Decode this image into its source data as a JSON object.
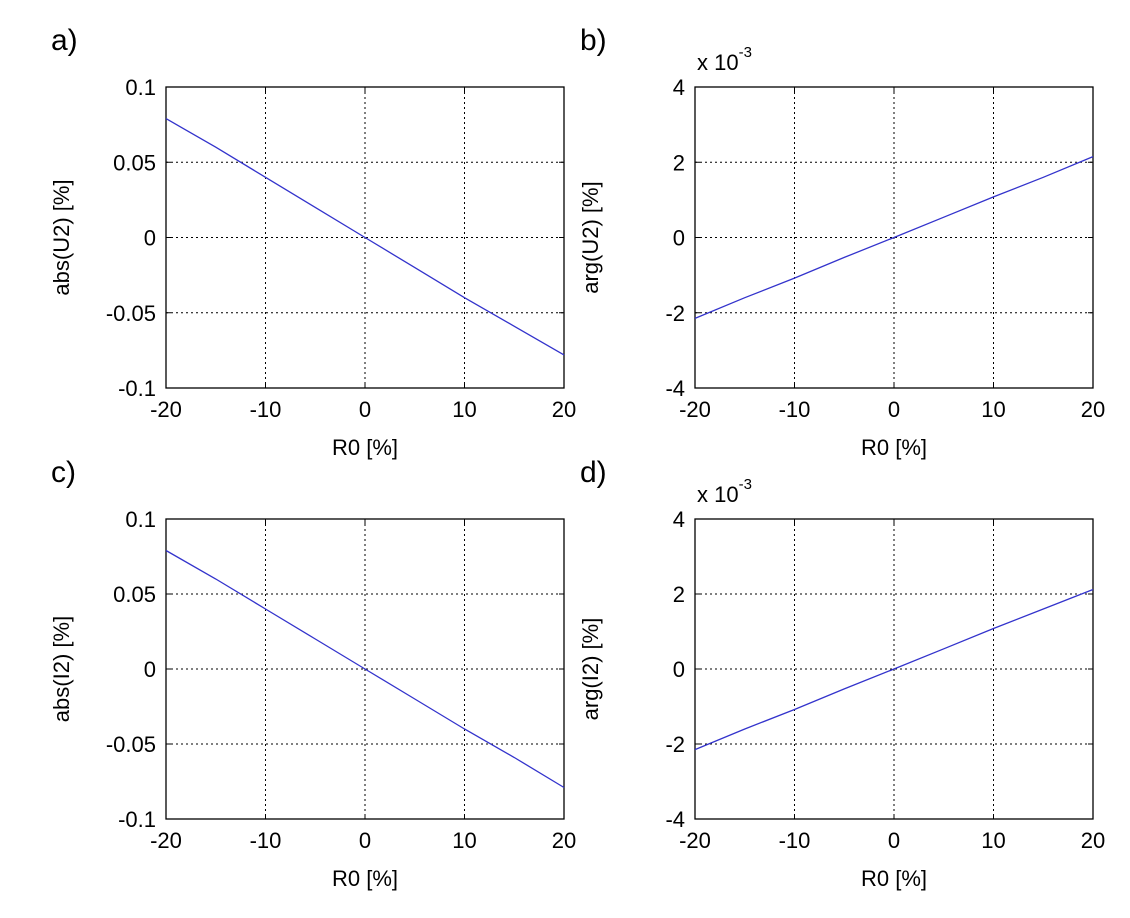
{
  "chart_data": [
    {
      "type": "line",
      "panel_label": "a)",
      "xlabel": "R0 [%]",
      "ylabel": "abs(U2) [%]",
      "xlim": [
        -20,
        20
      ],
      "ylim": [
        -0.1,
        0.1
      ],
      "xticks": [
        -20,
        -10,
        0,
        10,
        20
      ],
      "xtick_labels": [
        "-20",
        "-10",
        "0",
        "10",
        "20"
      ],
      "yticks": [
        -0.1,
        -0.05,
        0,
        0.05,
        0.1
      ],
      "ytick_labels": [
        "-0.1",
        "-0.05",
        "0",
        "0.05",
        "0.1"
      ],
      "exponent_label": "",
      "exponent_power": "",
      "grid": true,
      "series": [
        {
          "color": "#3333cc",
          "x": [
            -20,
            -15,
            -10,
            -5,
            0,
            5,
            10,
            15,
            20
          ],
          "y": [
            0.079,
            0.06,
            0.04,
            0.02,
            0.0,
            -0.02,
            -0.04,
            -0.059,
            -0.078
          ]
        }
      ]
    },
    {
      "type": "line",
      "panel_label": "b)",
      "xlabel": "R0 [%]",
      "ylabel": "arg(U2) [%]",
      "xlim": [
        -20,
        20
      ],
      "ylim": [
        -4,
        4
      ],
      "xticks": [
        -20,
        -10,
        0,
        10,
        20
      ],
      "xtick_labels": [
        "-20",
        "-10",
        "0",
        "10",
        "20"
      ],
      "yticks": [
        -4,
        -2,
        0,
        2,
        4
      ],
      "ytick_labels": [
        "-4",
        "-2",
        "0",
        "2",
        "4"
      ],
      "exponent_label": "x 10",
      "exponent_power": "-3",
      "grid": true,
      "series": [
        {
          "color": "#3333cc",
          "x": [
            -20,
            -15,
            -10,
            -5,
            0,
            5,
            10,
            15,
            20
          ],
          "y": [
            -2.15,
            -1.6,
            -1.08,
            -0.53,
            0.0,
            0.54,
            1.08,
            1.6,
            2.15
          ]
        }
      ]
    },
    {
      "type": "line",
      "panel_label": "c)",
      "xlabel": "R0 [%]",
      "ylabel": "abs(I2) [%]",
      "xlim": [
        -20,
        20
      ],
      "ylim": [
        -0.1,
        0.1
      ],
      "xticks": [
        -20,
        -10,
        0,
        10,
        20
      ],
      "xtick_labels": [
        "-20",
        "-10",
        "0",
        "10",
        "20"
      ],
      "yticks": [
        -0.1,
        -0.05,
        0,
        0.05,
        0.1
      ],
      "ytick_labels": [
        "-0.1",
        "-0.05",
        "0",
        "0.05",
        "0.1"
      ],
      "exponent_label": "",
      "exponent_power": "",
      "grid": true,
      "series": [
        {
          "color": "#3333cc",
          "x": [
            -20,
            -15,
            -10,
            -5,
            0,
            5,
            10,
            15,
            20
          ],
          "y": [
            0.079,
            0.06,
            0.04,
            0.02,
            0.0,
            -0.02,
            -0.04,
            -0.059,
            -0.079
          ]
        }
      ]
    },
    {
      "type": "line",
      "panel_label": "d)",
      "xlabel": "R0 [%]",
      "ylabel": "arg(I2) [%]",
      "xlim": [
        -20,
        20
      ],
      "ylim": [
        -4,
        4
      ],
      "xticks": [
        -20,
        -10,
        0,
        10,
        20
      ],
      "xtick_labels": [
        "-20",
        "-10",
        "0",
        "10",
        "20"
      ],
      "yticks": [
        -4,
        -2,
        0,
        2,
        4
      ],
      "ytick_labels": [
        "-4",
        "-2",
        "0",
        "2",
        "4"
      ],
      "exponent_label": "x 10",
      "exponent_power": "-3",
      "grid": true,
      "series": [
        {
          "color": "#3333cc",
          "x": [
            -20,
            -15,
            -10,
            -5,
            0,
            5,
            10,
            15,
            20
          ],
          "y": [
            -2.15,
            -1.6,
            -1.08,
            -0.53,
            0.0,
            0.54,
            1.08,
            1.6,
            2.12
          ]
        }
      ]
    }
  ]
}
